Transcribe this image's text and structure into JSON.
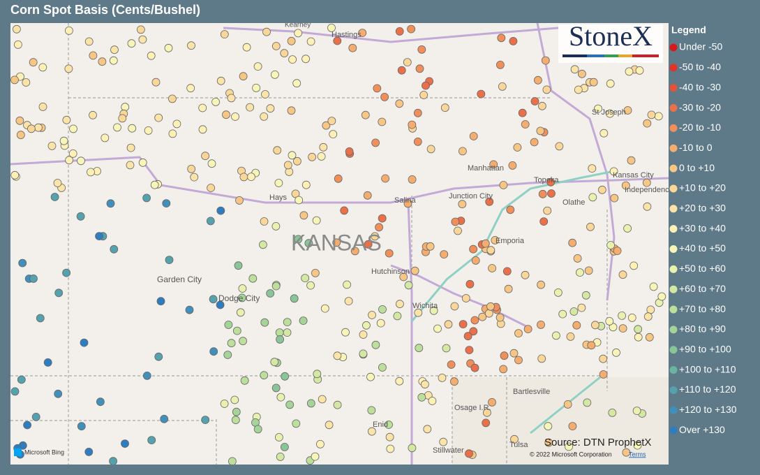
{
  "header": {
    "title": "Corn Spot Basis (Cents/Bushel)"
  },
  "logo": "StoneX",
  "legend": {
    "title": "Legend",
    "items": [
      {
        "name": "Under -50",
        "color": "#d7191c"
      },
      {
        "name": "-50 to -40",
        "color": "#df3427"
      },
      {
        "name": "-40 to -30",
        "color": "#e55238"
      },
      {
        "name": "-30 to -20",
        "color": "#ea7049"
      },
      {
        "name": "-20 to -10",
        "color": "#f08f5a"
      },
      {
        "name": "-10 to 0",
        "color": "#f4ad6e"
      },
      {
        "name": "0 to +10",
        "color": "#f7c684"
      },
      {
        "name": "+10 to +20",
        "color": "#fad698"
      },
      {
        "name": "+20 to +30",
        "color": "#fce4a8"
      },
      {
        "name": "+30 to +40",
        "color": "#fff1b6"
      },
      {
        "name": "+40 to +50",
        "color": "#f7f6b8"
      },
      {
        "name": "+50 to +60",
        "color": "#e8f1ae"
      },
      {
        "name": "+60 to +70",
        "color": "#d4e8a4"
      },
      {
        "name": "+70 to +80",
        "color": "#bddf9c"
      },
      {
        "name": "+80 to +90",
        "color": "#a5d499"
      },
      {
        "name": "+90 to +100",
        "color": "#8ac597"
      },
      {
        "name": "+100 to +110",
        "color": "#6cb3a0"
      },
      {
        "name": "+110 to +120",
        "color": "#55a1ad"
      },
      {
        "name": "+120 to +130",
        "color": "#428fbb"
      },
      {
        "name": "Over +130",
        "color": "#2f7dc1"
      }
    ]
  },
  "places": [
    "Kearney",
    "Hastings",
    "St Joseph",
    "Manhattan",
    "Topeka",
    "Kansas City",
    "Independence",
    "Salina",
    "Junction City",
    "Hays",
    "Olathe",
    "KANSAS",
    "Emporia",
    "Garden City",
    "Dodge City",
    "Hutchinson",
    "Wichita",
    "Bartlesville",
    "Osage I.R.",
    "Enid",
    "Stillwater",
    "Tulsa"
  ],
  "source": "Source: DTN ProphetX",
  "attribution": {
    "provider": "Microsoft Bing",
    "copyright": "© 2022 Microsoft Corporation",
    "terms": "Terms"
  }
}
